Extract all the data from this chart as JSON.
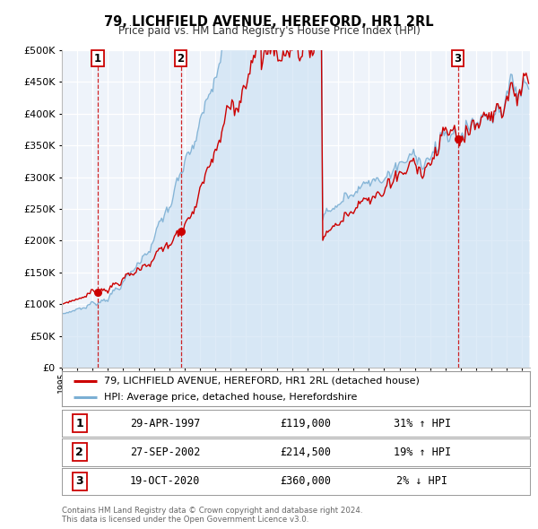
{
  "title": "79, LICHFIELD AVENUE, HEREFORD, HR1 2RL",
  "subtitle": "Price paid vs. HM Land Registry's House Price Index (HPI)",
  "legend_line1": "79, LICHFIELD AVENUE, HEREFORD, HR1 2RL (detached house)",
  "legend_line2": "HPI: Average price, detached house, Herefordshire",
  "sale_color": "#cc0000",
  "hpi_color": "#7bafd4",
  "marker_color": "#cc0000",
  "vline_color": "#cc0000",
  "shade_color": "#ddeaf7",
  "plot_bg": "#eef3fa",
  "footer": "Contains HM Land Registry data © Crown copyright and database right 2024.\nThis data is licensed under the Open Government Licence v3.0.",
  "sales": [
    {
      "date_num": 1997.328,
      "price": 119000,
      "label": "1",
      "date_str": "29-APR-1997",
      "pct": "31%",
      "arrow": "↑"
    },
    {
      "date_num": 2002.744,
      "price": 214500,
      "label": "2",
      "date_str": "27-SEP-2002",
      "pct": "19%",
      "arrow": "↑"
    },
    {
      "date_num": 2020.797,
      "price": 360000,
      "label": "3",
      "date_str": "19-OCT-2020",
      "pct": "2%",
      "arrow": "↓"
    }
  ],
  "ylim": [
    0,
    500000
  ],
  "yticks": [
    0,
    50000,
    100000,
    150000,
    200000,
    250000,
    300000,
    350000,
    400000,
    450000,
    500000
  ],
  "xlim": [
    1995.0,
    2025.5
  ],
  "xtick_years": [
    1995,
    1996,
    1997,
    1998,
    1999,
    2000,
    2001,
    2002,
    2003,
    2004,
    2005,
    2006,
    2007,
    2008,
    2009,
    2010,
    2011,
    2012,
    2013,
    2014,
    2015,
    2016,
    2017,
    2018,
    2019,
    2020,
    2021,
    2022,
    2023,
    2024,
    2025
  ]
}
